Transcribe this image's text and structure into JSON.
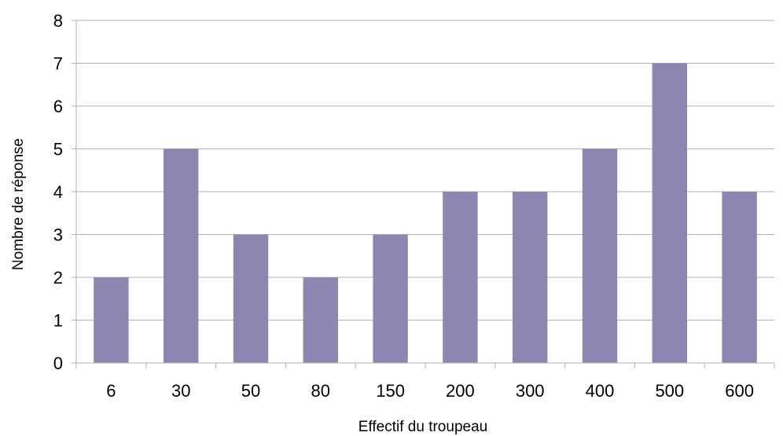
{
  "chart_data": {
    "type": "bar",
    "title": "",
    "xlabel": "Effectif du troupeau",
    "ylabel": "Nombre de réponse",
    "categories": [
      "6",
      "30",
      "50",
      "80",
      "150",
      "200",
      "300",
      "400",
      "500",
      "600"
    ],
    "values": [
      2,
      5,
      3,
      2,
      3,
      4,
      4,
      5,
      7,
      4
    ],
    "ylim": [
      0,
      8
    ],
    "yticks": [
      "0",
      "1",
      "2",
      "3",
      "4",
      "5",
      "6",
      "7",
      "8"
    ],
    "grid": true,
    "legend": "none",
    "bar_color": "#8c87b0",
    "grid_color": "#b3b3b3",
    "axis_color": "#b3b3b3"
  }
}
